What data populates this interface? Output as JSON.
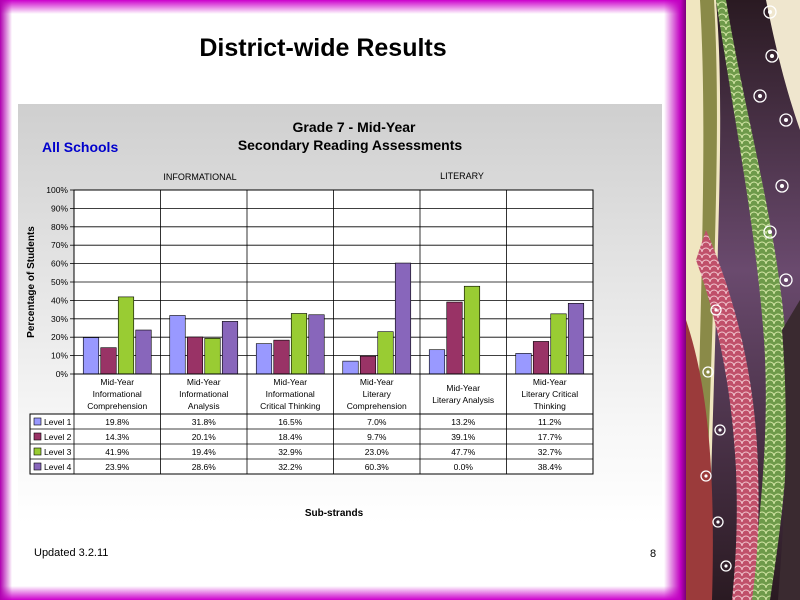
{
  "slide": {
    "title": "District-wide Results",
    "updated": "Updated  3.2.11",
    "page_number": "8"
  },
  "colors": {
    "level1": "#9999ff",
    "level2": "#993366",
    "level3": "#99cc33",
    "level4": "#8866bb"
  },
  "chart_data": {
    "type": "bar",
    "title": "Grade 7 - Mid-Year",
    "subtitle": "Secondary Reading Assessments",
    "corner_label": "All Schools",
    "group_labels": [
      "INFORMATIONAL",
      "LITERARY"
    ],
    "xlabel": "Sub-strands",
    "ylabel": "Percentage of Students",
    "ylim": [
      0,
      100
    ],
    "y_ticks": [
      "0%",
      "10%",
      "20%",
      "30%",
      "40%",
      "50%",
      "60%",
      "70%",
      "80%",
      "90%",
      "100%"
    ],
    "grid": true,
    "legend": "data-table-left",
    "categories": [
      [
        "Mid-Year",
        "Informational",
        "Comprehension"
      ],
      [
        "Mid-Year",
        "Informational",
        "Analysis"
      ],
      [
        "Mid-Year",
        "Informational",
        "Critical Thinking"
      ],
      [
        "Mid-Year",
        "Literary",
        "Comprehension"
      ],
      [
        "Mid-Year",
        "Literary Analysis"
      ],
      [
        "Mid-Year",
        "Literary Critical",
        "Thinking"
      ]
    ],
    "series": [
      {
        "name": "Level 1",
        "values": [
          19.8,
          31.8,
          16.5,
          7.0,
          13.2,
          11.2
        ],
        "labels": [
          "19.8%",
          "31.8%",
          "16.5%",
          "7.0%",
          "13.2%",
          "11.2%"
        ]
      },
      {
        "name": "Level 2",
        "values": [
          14.3,
          20.1,
          18.4,
          9.7,
          39.1,
          17.7
        ],
        "labels": [
          "14.3%",
          "20.1%",
          "18.4%",
          "9.7%",
          "39.1%",
          "17.7%"
        ]
      },
      {
        "name": "Level 3",
        "values": [
          41.9,
          19.4,
          32.9,
          23.0,
          47.7,
          32.7
        ],
        "labels": [
          "41.9%",
          "19.4%",
          "32.9%",
          "23.0%",
          "47.7%",
          "32.7%"
        ]
      },
      {
        "name": "Level 4",
        "values": [
          23.9,
          28.6,
          32.2,
          60.3,
          0.0,
          38.4
        ],
        "labels": [
          "23.9%",
          "28.6%",
          "32.2%",
          "60.3%",
          "0.0%",
          "38.4%"
        ]
      }
    ]
  }
}
